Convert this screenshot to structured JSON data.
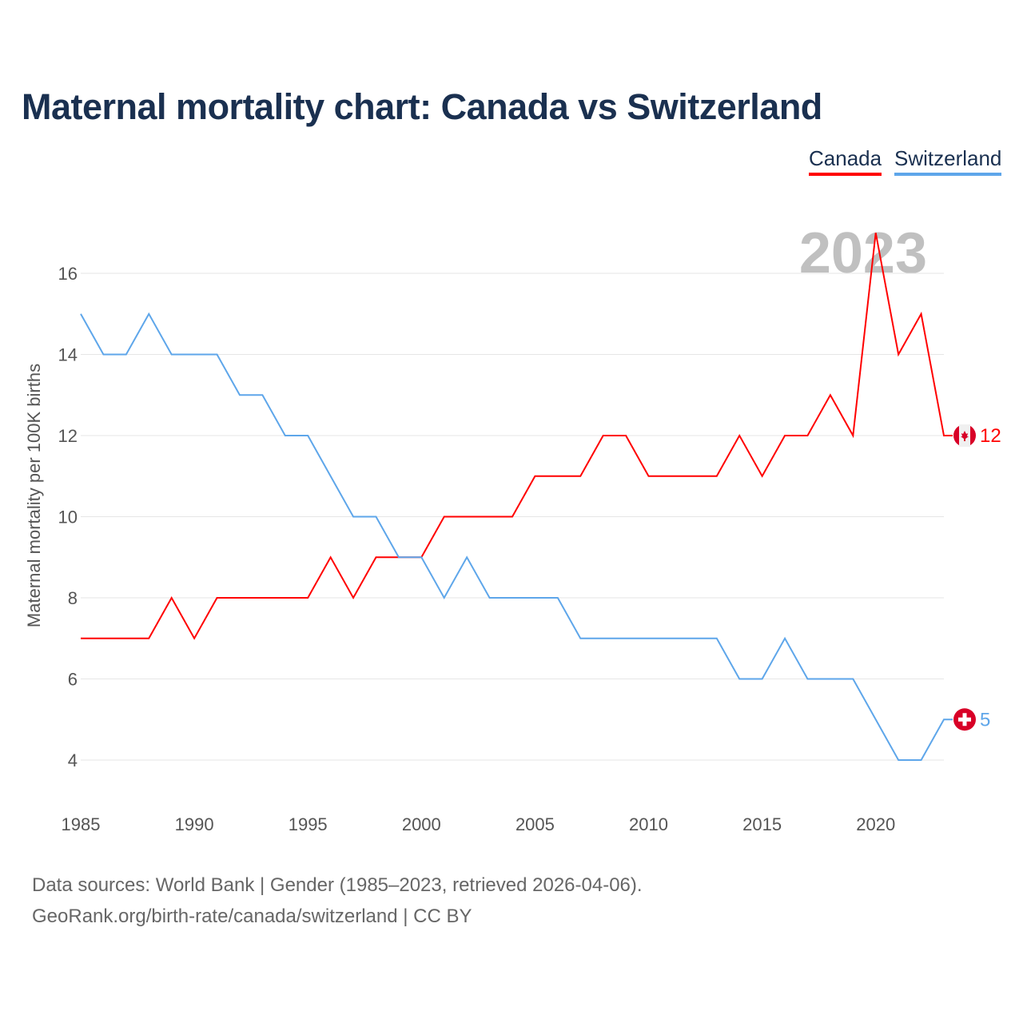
{
  "chart_data": {
    "type": "line",
    "title": "Maternal mortality chart: Canada vs Switzerland",
    "xlabel": "",
    "ylabel": "Maternal mortality per 100K births",
    "watermark_year": "2023",
    "x": [
      1985,
      1986,
      1987,
      1988,
      1989,
      1990,
      1991,
      1992,
      1993,
      1994,
      1995,
      1996,
      1997,
      1998,
      1999,
      2000,
      2001,
      2002,
      2003,
      2004,
      2005,
      2006,
      2007,
      2008,
      2009,
      2010,
      2011,
      2012,
      2013,
      2014,
      2015,
      2016,
      2017,
      2018,
      2019,
      2020,
      2021,
      2022,
      2023
    ],
    "xlim": [
      1985,
      2023
    ],
    "ylim": [
      3,
      17.5
    ],
    "xticks": [
      "1985",
      "1990",
      "1995",
      "2000",
      "2005",
      "2010",
      "2015",
      "2020"
    ],
    "yticks": [
      "4",
      "6",
      "8",
      "10",
      "12",
      "14",
      "16"
    ],
    "grid": true,
    "legend_placement": "top-right",
    "series": [
      {
        "name": "Canada",
        "color": "#ff0000",
        "end_label": "12",
        "flag": "canada-flag",
        "values": [
          7,
          7,
          7,
          7,
          8,
          7,
          8,
          8,
          8,
          8,
          8,
          9,
          8,
          9,
          9,
          9,
          10,
          10,
          10,
          10,
          11,
          11,
          11,
          12,
          12,
          11,
          11,
          11,
          11,
          12,
          11,
          12,
          12,
          13,
          12,
          17,
          14,
          15,
          12
        ]
      },
      {
        "name": "Switzerland",
        "color": "#5ea6ea",
        "end_label": "5",
        "flag": "switzerland-flag",
        "values": [
          15,
          14,
          14,
          15,
          14,
          14,
          14,
          13,
          13,
          12,
          12,
          11,
          10,
          10,
          9,
          9,
          8,
          9,
          8,
          8,
          8,
          8,
          7,
          7,
          7,
          7,
          7,
          7,
          7,
          6,
          6,
          7,
          6,
          6,
          6,
          5,
          4,
          4,
          5
        ]
      }
    ]
  },
  "footer": {
    "line1": "Data sources: World Bank | Gender (1985–2023, retrieved 2026-04-06).",
    "line2": "GeoRank.org/birth-rate/canada/switzerland | CC BY"
  }
}
